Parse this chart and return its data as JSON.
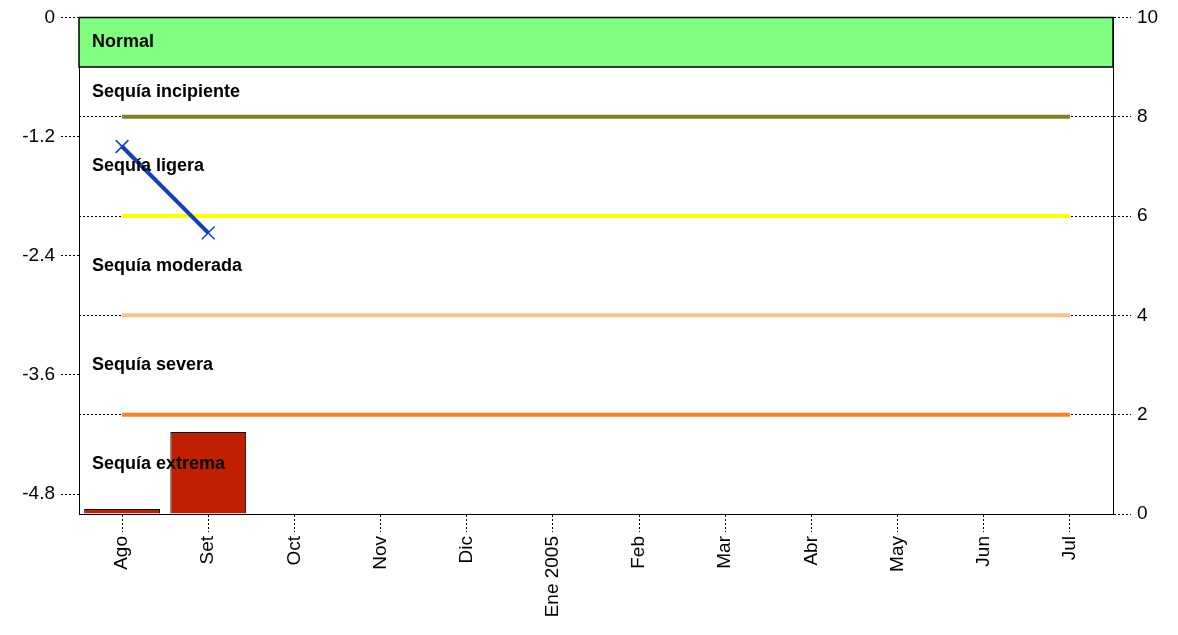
{
  "chart_data": {
    "type": "bar",
    "categories": [
      "Ago",
      "Set",
      "Oct",
      "Nov",
      "Dic",
      "Ene 2005",
      "Feb",
      "Mar",
      "Abr",
      "May",
      "Jun",
      "Jul"
    ],
    "series": [
      {
        "axis": "y2",
        "color": "#c02000",
        "values": [
          0.1,
          1.65,
          null,
          null,
          null,
          null,
          null,
          null,
          null,
          null,
          null,
          null
        ]
      },
      {
        "type": "line",
        "color": "#1040c0",
        "marker": "cross",
        "line_style": "solid",
        "values": [
          -1.3,
          -2.17,
          null,
          null,
          null,
          null,
          null,
          null,
          null,
          null,
          null,
          null
        ]
      }
    ],
    "ylim": [
      -5,
      0
    ],
    "yticks": [
      0,
      -1.2,
      -2.4,
      -3.6,
      -4.8
    ],
    "y2lim": [
      0,
      10
    ],
    "y2ticks": [
      0,
      2,
      4,
      6,
      8,
      10
    ],
    "grid": "y",
    "legend": false,
    "ref_lines": [
      {
        "axis": "y2",
        "value": 8,
        "color": "#808020"
      },
      {
        "axis": "y2",
        "value": 6,
        "color": "#ffff00"
      },
      {
        "axis": "y2",
        "value": 4,
        "color": "#ffc080"
      },
      {
        "axis": "y2",
        "value": 2,
        "color": "#ff8020"
      }
    ],
    "bands": [
      {
        "axis": "y2",
        "from": 9,
        "to": 10,
        "label": "Normal",
        "color": "#80ff80"
      }
    ],
    "annotations": [
      "Sequía incipiente",
      "Sequía ligera",
      "Sequía moderada",
      "Sequía severa",
      "Sequía extrema"
    ]
  }
}
